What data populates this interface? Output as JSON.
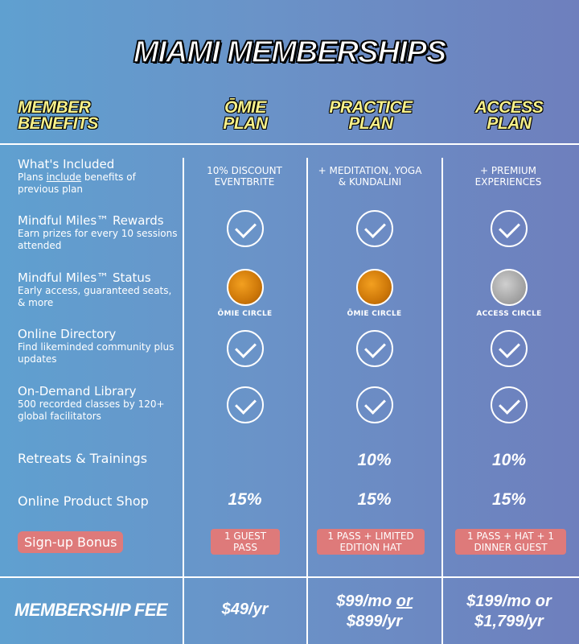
{
  "title": "MIAMI MEMBERSHIPS",
  "columns": {
    "benefits": [
      "MEMBER",
      "BENEFITS"
    ],
    "omie": [
      "ŌMIE",
      "PLAN"
    ],
    "practice": [
      "PRACTICE",
      "PLAN"
    ],
    "access": [
      "ACCESS",
      "PLAN"
    ]
  },
  "rows": {
    "included": {
      "title": "What's Included",
      "desc_pre": "Plans ",
      "desc_u": "include",
      "desc_post": " benefits of previous plan",
      "omie": "10% DISCOUNT EVENTBRITE",
      "practice": "+ MEDITATION, YOGA & KUNDALINI",
      "access": "+ PREMIUM EXPERIENCES"
    },
    "rewards": {
      "title": "Mindful Miles™ Rewards",
      "desc": "Earn prizes for every 10 sessions attended"
    },
    "status": {
      "title": "Mindful Miles™ Status",
      "desc": "Early access, guaranteed seats, & more",
      "omie": "ŌMIE CIRCLE",
      "practice": "ŌMIE CIRCLE",
      "access": "ACCESS CIRCLE",
      "medal_colors": {
        "omie": "gold",
        "practice": "gold",
        "access": "silver"
      }
    },
    "directory": {
      "title": "Online Directory",
      "desc": "Find likeminded community plus updates"
    },
    "library": {
      "title": "On-Demand Library",
      "desc": "500 recorded classes by 120+ global facilitators"
    },
    "retreats": {
      "title": "Retreats & Trainings",
      "practice": "10%",
      "access": "10%"
    },
    "shop": {
      "title": "Online Product Shop",
      "omie": "15%",
      "practice": "15%",
      "access": "15%"
    },
    "bonus": {
      "title": "Sign-up Bonus",
      "omie": "1 GUEST PASS",
      "practice": "1 PASS + LIMITED EDITION HAT",
      "access": "1 PASS + HAT + 1 DINNER GUEST"
    }
  },
  "fee": {
    "label": "MEMBERSHIP FEE",
    "omie": "$49/yr",
    "practice_a": "$99/mo",
    "practice_or": "or",
    "practice_b": "$899/yr",
    "access_a": "$199/mo or",
    "access_b": "$1,799/yr"
  },
  "colors": {
    "bg_left": "#5fa0d0",
    "bg_right": "#6e7fbd",
    "header_yellow": "#f6f08a",
    "badge_red": "#de7a7a",
    "gold": "#d07a0a",
    "silver": "#a8a8a8"
  }
}
